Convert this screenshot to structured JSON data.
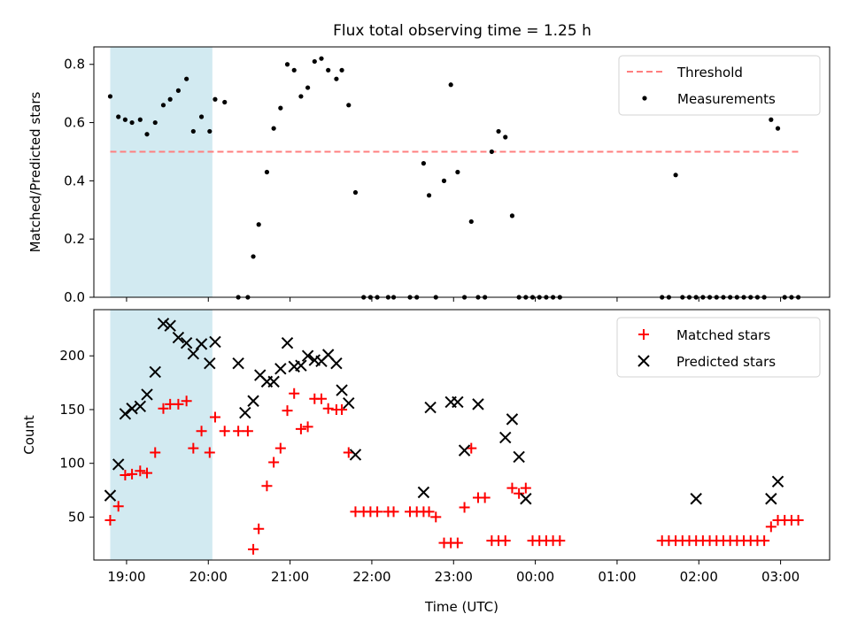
{
  "title": "Flux total observing time = 1.25 h",
  "colors": {
    "threshold": "#ff7f7f",
    "measurement": "#000000",
    "matched": "#ff0000",
    "predicted": "#000000",
    "highlight": "#add8e6"
  },
  "chart_data": [
    {
      "type": "scatter",
      "panel": "top",
      "ylabel": "Matched/Predicted stars",
      "xlabel": "",
      "xlim": [
        18.6,
        3.6
      ],
      "ylim": [
        0,
        0.86
      ],
      "x_ticks": [
        "19:00",
        "20:00",
        "21:00",
        "22:00",
        "23:00",
        "00:00",
        "01:00",
        "02:00",
        "03:00"
      ],
      "y_ticks": [
        0.0,
        0.2,
        0.4,
        0.6,
        0.8
      ],
      "y_tick_labels": [
        "0.0",
        "0.2",
        "0.4",
        "0.6",
        "0.8"
      ],
      "highlight_span": [
        "18:48",
        "20:03"
      ],
      "legend_position": "top-right",
      "legend": [
        "Threshold",
        "Measurements"
      ],
      "threshold": {
        "name": "Threshold",
        "y": 0.5,
        "x_range": [
          "18:48",
          "03:15"
        ],
        "style": "dashed"
      },
      "series": [
        {
          "name": "Measurements",
          "x": [
            "18:48",
            "18:54",
            "18:59",
            "19:04",
            "19:10",
            "19:15",
            "19:21",
            "19:27",
            "19:32",
            "19:38",
            "19:44",
            "19:49",
            "19:55",
            "20:01",
            "20:05",
            "20:12",
            "20:22",
            "20:29",
            "20:33",
            "20:37",
            "20:43",
            "20:48",
            "20:53",
            "20:58",
            "21:03",
            "21:08",
            "21:13",
            "21:18",
            "21:23",
            "21:28",
            "21:34",
            "21:38",
            "21:43",
            "21:48",
            "21:54",
            "21:59",
            "22:04",
            "22:12",
            "22:16",
            "22:28",
            "22:33",
            "22:38",
            "22:42",
            "22:47",
            "22:53",
            "22:58",
            "23:03",
            "23:08",
            "23:13",
            "23:18",
            "23:23",
            "23:28",
            "23:33",
            "23:38",
            "23:43",
            "23:48",
            "23:53",
            "23:58",
            "00:03",
            "00:08",
            "00:13",
            "00:18",
            "01:33",
            "01:38",
            "01:43",
            "01:48",
            "01:53",
            "01:58",
            "02:03",
            "02:08",
            "02:13",
            "02:18",
            "02:23",
            "02:28",
            "02:33",
            "02:38",
            "02:43",
            "02:48",
            "02:53",
            "02:58",
            "03:03",
            "03:08",
            "03:13"
          ],
          "y": [
            0.69,
            0.62,
            0.61,
            0.6,
            0.61,
            0.56,
            0.6,
            0.66,
            0.68,
            0.71,
            0.75,
            0.57,
            0.62,
            0.57,
            0.68,
            0.67,
            0.0,
            0.0,
            0.14,
            0.25,
            0.43,
            0.58,
            0.65,
            0.8,
            0.78,
            0.69,
            0.72,
            0.81,
            0.82,
            0.78,
            0.75,
            0.78,
            0.66,
            0.36,
            0.0,
            0.0,
            0.0,
            0.0,
            0.0,
            0.0,
            0.0,
            0.46,
            0.35,
            0.0,
            0.4,
            0.73,
            0.43,
            0.0,
            0.26,
            0.0,
            0.0,
            0.5,
            0.57,
            0.55,
            0.28,
            0.0,
            0.0,
            0.0,
            0.0,
            0.0,
            0.0,
            0.0,
            0.0,
            0.0,
            0.42,
            0.0,
            0.0,
            0.0,
            0.0,
            0.0,
            0.0,
            0.0,
            0.0,
            0.0,
            0.0,
            0.0,
            0.0,
            0.0,
            0.61,
            0.58,
            0.0,
            0.0,
            0.0
          ]
        }
      ]
    },
    {
      "type": "scatter",
      "panel": "bottom",
      "ylabel": "Count",
      "xlabel": "Time (UTC)",
      "xlim": [
        18.6,
        3.6
      ],
      "ylim": [
        10,
        243
      ],
      "x_ticks": [
        "19:00",
        "20:00",
        "21:00",
        "22:00",
        "23:00",
        "00:00",
        "01:00",
        "02:00",
        "03:00"
      ],
      "y_ticks": [
        50,
        100,
        150,
        200
      ],
      "highlight_span": [
        "18:48",
        "20:03"
      ],
      "legend_position": "top-right",
      "legend": [
        "Matched stars",
        "Predicted stars"
      ],
      "series": [
        {
          "name": "Matched stars",
          "marker": "+",
          "x": [
            "18:48",
            "18:54",
            "18:59",
            "19:04",
            "19:10",
            "19:15",
            "19:21",
            "19:27",
            "19:32",
            "19:38",
            "19:44",
            "19:49",
            "19:55",
            "20:01",
            "20:05",
            "20:12",
            "20:22",
            "20:29",
            "20:33",
            "20:37",
            "20:43",
            "20:48",
            "20:53",
            "20:58",
            "21:03",
            "21:08",
            "21:13",
            "21:18",
            "21:23",
            "21:28",
            "21:34",
            "21:38",
            "21:43",
            "21:48",
            "21:54",
            "21:59",
            "22:04",
            "22:12",
            "22:16",
            "22:28",
            "22:33",
            "22:38",
            "22:42",
            "22:47",
            "22:53",
            "22:58",
            "23:03",
            "23:08",
            "23:13",
            "23:18",
            "23:23",
            "23:28",
            "23:33",
            "23:38",
            "23:43",
            "23:48",
            "23:53",
            "23:58",
            "00:03",
            "00:08",
            "00:13",
            "00:18",
            "01:33",
            "01:38",
            "01:43",
            "01:48",
            "01:53",
            "01:58",
            "02:03",
            "02:08",
            "02:13",
            "02:18",
            "02:23",
            "02:28",
            "02:33",
            "02:38",
            "02:43",
            "02:48",
            "02:53",
            "02:58",
            "03:03",
            "03:08",
            "03:13"
          ],
          "y": [
            47,
            60,
            89,
            90,
            93,
            91,
            110,
            151,
            155,
            155,
            158,
            114,
            130,
            110,
            143,
            130,
            130,
            130,
            20,
            39,
            79,
            101,
            114,
            149,
            165,
            132,
            134,
            160,
            160,
            151,
            150,
            150,
            110,
            55,
            55,
            55,
            55,
            55,
            55,
            55,
            55,
            55,
            55,
            50,
            26,
            26,
            26,
            59,
            114,
            68,
            68,
            28,
            28,
            28,
            77,
            72,
            77,
            28,
            28,
            28,
            28,
            28,
            28,
            28,
            28,
            28,
            28,
            28,
            28,
            28,
            28,
            28,
            28,
            28,
            28,
            28,
            28,
            28,
            41,
            47,
            47,
            47,
            47
          ]
        },
        {
          "name": "Predicted stars",
          "marker": "x",
          "x": [
            "18:48",
            "18:54",
            "18:59",
            "19:04",
            "19:10",
            "19:15",
            "19:21",
            "19:27",
            "19:32",
            "19:38",
            "19:44",
            "19:49",
            "19:55",
            "20:01",
            "20:05",
            "20:22",
            "20:27",
            "20:33",
            "20:38",
            "20:43",
            "20:48",
            "20:53",
            "20:58",
            "21:03",
            "21:08",
            "21:13",
            "21:18",
            "21:23",
            "21:28",
            "21:34",
            "21:38",
            "21:43",
            "21:48",
            "22:38",
            "22:43",
            "22:58",
            "23:03",
            "23:08",
            "23:18",
            "23:38",
            "23:43",
            "23:48",
            "23:53",
            "01:58",
            "02:53",
            "02:58"
          ],
          "y": [
            70,
            99,
            146,
            151,
            153,
            164,
            185,
            230,
            228,
            217,
            212,
            202,
            211,
            193,
            213,
            193,
            147,
            158,
            182,
            176,
            176,
            188,
            212,
            190,
            191,
            200,
            196,
            195,
            201,
            193,
            168,
            156,
            108,
            73,
            152,
            157,
            157,
            112,
            155,
            124,
            141,
            106,
            67,
            67,
            67,
            83
          ]
        }
      ]
    }
  ]
}
